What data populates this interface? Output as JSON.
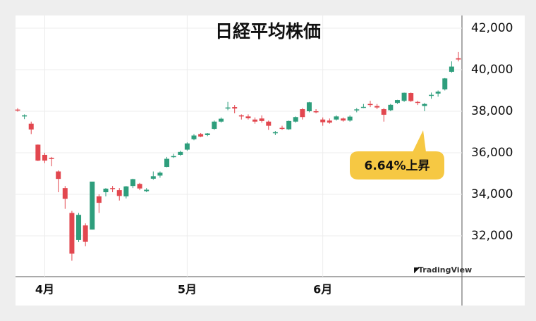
{
  "chart_data": {
    "type": "candlestick",
    "title": "日経平均株価",
    "annotation": "6.64%上昇",
    "watermark": "TradingView",
    "categories": [
      "",
      "",
      "",
      "",
      "4月",
      "",
      "",
      "",
      "",
      "",
      "",
      "",
      "",
      "",
      "",
      "",
      "",
      "",
      "",
      "",
      "",
      "",
      "",
      "",
      "",
      "5月",
      "",
      "",
      "",
      "",
      "",
      "",
      "",
      "",
      "",
      "",
      "",
      "",
      "",
      "",
      "",
      "",
      "",
      "",
      "",
      "6月",
      "",
      "",
      "",
      "",
      "",
      "",
      "",
      "",
      "",
      "",
      "",
      "",
      "",
      "",
      "",
      "",
      "",
      "",
      "",
      ""
    ],
    "open": [
      38080,
      37750,
      37400,
      36390,
      35900,
      35750,
      35100,
      34300,
      33100,
      31800,
      32500,
      32300,
      33900,
      34100,
      34300,
      34200,
      33900,
      34400,
      34500,
      34150,
      34750,
      34900,
      35320,
      35800,
      35900,
      36150,
      36650,
      36900,
      36850,
      37150,
      37500,
      38150,
      38200,
      37800,
      37750,
      37600,
      37650,
      37500,
      36950,
      37200,
      37130,
      37500,
      38100,
      38000,
      38000,
      37600,
      37550,
      37600,
      37650,
      37550,
      38050,
      38200,
      38350,
      38250,
      38100,
      38050,
      38400,
      38500,
      38880,
      38450,
      38250,
      38750,
      38850,
      39050,
      39900,
      40550
    ],
    "high": [
      38150,
      37850,
      37500,
      36400,
      36000,
      35800,
      35150,
      34400,
      33200,
      33100,
      32600,
      34600,
      34000,
      34300,
      34400,
      34300,
      34400,
      34750,
      34550,
      34300,
      35100,
      35100,
      35800,
      35950,
      36100,
      36500,
      36900,
      36950,
      36950,
      37550,
      37700,
      38450,
      38300,
      37850,
      37850,
      37700,
      37800,
      37550,
      37050,
      37300,
      37550,
      37750,
      38150,
      38450,
      38100,
      37700,
      37650,
      37800,
      37700,
      37800,
      38150,
      38350,
      38500,
      38350,
      38150,
      38350,
      38550,
      38900,
      38900,
      38500,
      38400,
      38900,
      39000,
      39600,
      40400,
      40850
    ],
    "low": [
      37980,
      37620,
      36900,
      35600,
      35500,
      35350,
      34100,
      33300,
      30800,
      31700,
      31500,
      32300,
      33100,
      33900,
      34100,
      33700,
      33800,
      34300,
      34200,
      34100,
      34700,
      34800,
      35300,
      35750,
      35850,
      36100,
      36600,
      36750,
      36800,
      37100,
      37450,
      38050,
      37900,
      37600,
      37600,
      37400,
      37450,
      37100,
      36850,
      37100,
      37100,
      37450,
      37600,
      37950,
      37900,
      37300,
      37400,
      37550,
      37500,
      37500,
      37950,
      38150,
      38200,
      38100,
      37500,
      38000,
      38350,
      38450,
      38450,
      38300,
      38000,
      38600,
      38700,
      39000,
      39850,
      40400
    ],
    "close": [
      38030,
      37800,
      37120,
      35620,
      35620,
      35720,
      34740,
      33780,
      31140,
      33010,
      31710,
      34610,
      33590,
      34270,
      34270,
      33920,
      34380,
      34730,
      34280,
      34220,
      34870,
      35040,
      35710,
      35840,
      36040,
      36450,
      36830,
      36780,
      36930,
      37500,
      37640,
      38180,
      38130,
      37750,
      37660,
      37500,
      37530,
      37300,
      36990,
      37160,
      37530,
      37720,
      37720,
      38430,
      37960,
      37470,
      37450,
      37750,
      37550,
      37740,
      38090,
      38210,
      38320,
      38180,
      37830,
      38310,
      38540,
      38890,
      38490,
      38400,
      38350,
      38790,
      38940,
      39580,
      40150,
      40490
    ],
    "up_color": "#2e9e7c",
    "down_color": "#e2474f",
    "ylim": [
      30034,
      42610
    ],
    "yticks": [
      {
        "value": 32000,
        "label": "32,000"
      },
      {
        "value": 34000,
        "label": "34,000"
      },
      {
        "value": 36000,
        "label": "36,000"
      },
      {
        "value": 38000,
        "label": "38,000"
      },
      {
        "value": 40000,
        "label": "40,000"
      },
      {
        "value": 42000,
        "label": "42,000"
      }
    ],
    "grid": true
  }
}
